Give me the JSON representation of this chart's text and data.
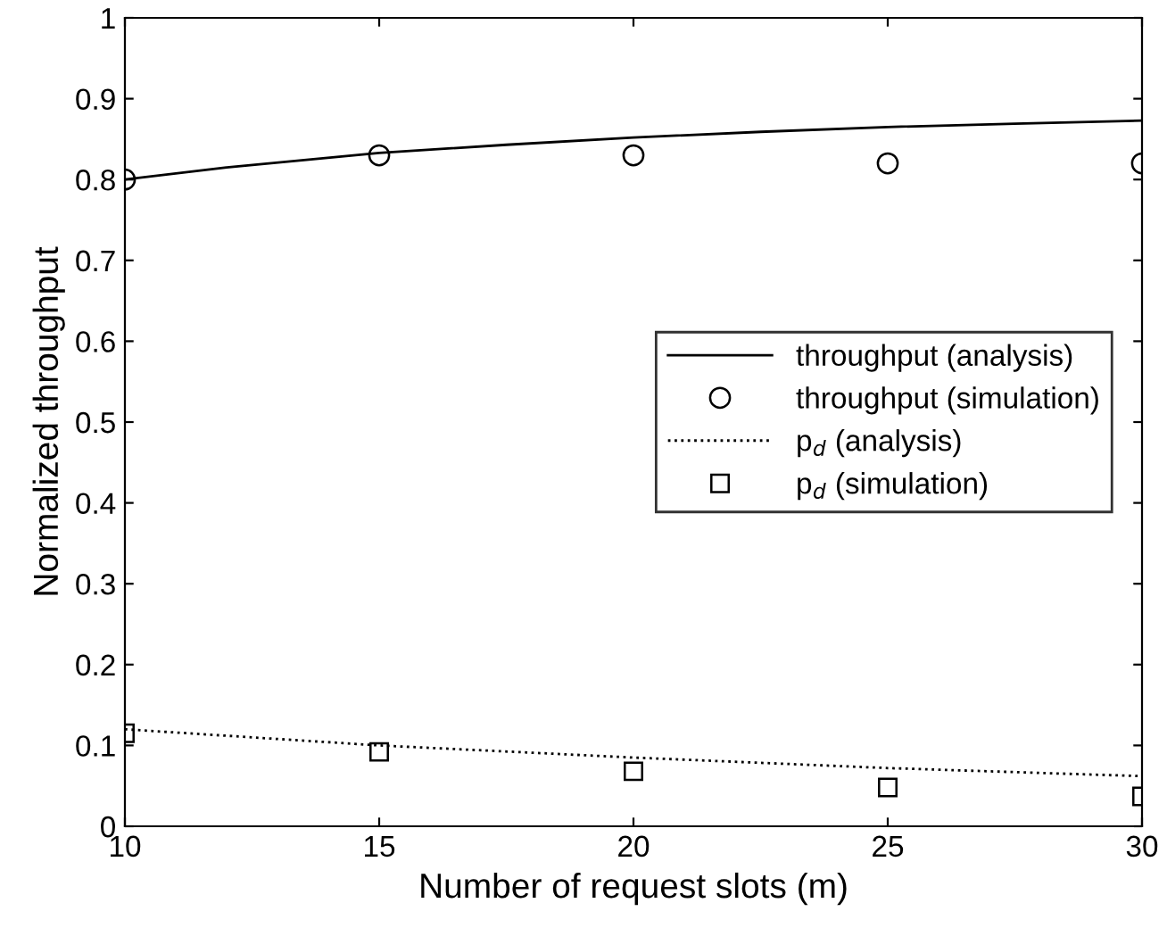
{
  "chart_data": {
    "type": "line",
    "xlabel": "Number of request slots (m)",
    "ylabel": "Normalized throughput",
    "x": [
      10,
      15,
      20,
      25,
      30
    ],
    "series": [
      {
        "name": "throughput (analysis)",
        "color": "#000000",
        "line_style": "solid",
        "marker": "none",
        "x": [
          10,
          12,
          15,
          17.5,
          20,
          22.5,
          25,
          27.5,
          30
        ],
        "values": [
          0.8,
          0.815,
          0.833,
          0.843,
          0.852,
          0.859,
          0.865,
          0.869,
          0.873
        ]
      },
      {
        "name": "throughput (simulation)",
        "type": "scatter",
        "color": "#000000",
        "marker": "circle",
        "values": [
          0.8,
          0.83,
          0.83,
          0.82,
          0.82
        ]
      },
      {
        "name": "p$_{d}$ (analysis)",
        "color": "#000000",
        "line_style": "dotted",
        "marker": "none",
        "values": [
          0.12,
          0.1,
          0.085,
          0.072,
          0.062
        ]
      },
      {
        "name": "p$_{d}$ (simulation)",
        "type": "scatter",
        "color": "#000000",
        "marker": "square",
        "values": [
          0.115,
          0.092,
          0.068,
          0.048,
          0.037
        ]
      }
    ],
    "xlim": [
      10,
      30
    ],
    "xticks": [
      10,
      15,
      20,
      25,
      30
    ],
    "ylim": [
      0,
      1
    ],
    "yticks": [
      0,
      0.1,
      0.2,
      0.3,
      0.4,
      0.5,
      0.6,
      0.7,
      0.8,
      0.9,
      1
    ],
    "grid": false,
    "legend": "right"
  }
}
